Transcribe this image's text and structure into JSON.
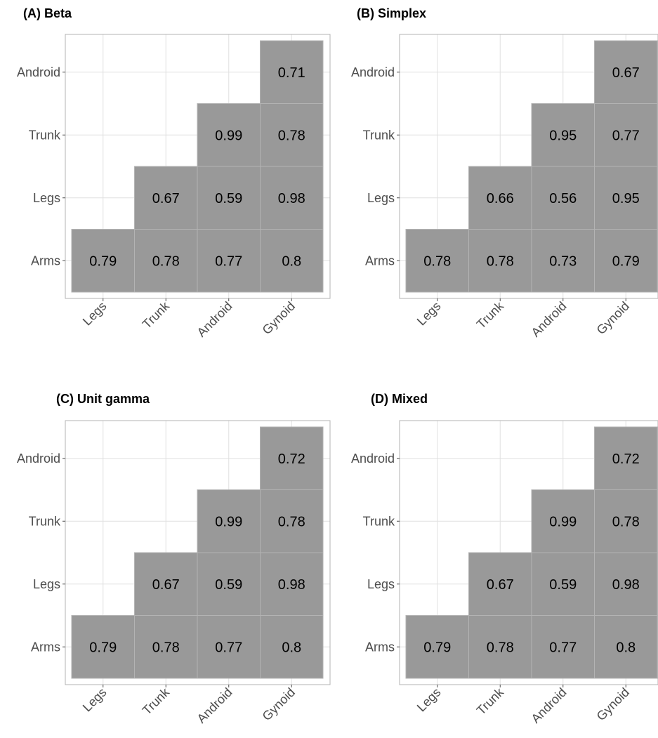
{
  "chart_data": [
    {
      "type": "heatmap",
      "title": "(A) Beta",
      "x_categories": [
        "Legs",
        "Trunk",
        "Android",
        "Gynoid"
      ],
      "y_categories": [
        "Arms",
        "Legs",
        "Trunk",
        "Android"
      ],
      "cells": [
        {
          "x": "Legs",
          "y": "Arms",
          "value": "0.79"
        },
        {
          "x": "Trunk",
          "y": "Arms",
          "value": "0.78"
        },
        {
          "x": "Android",
          "y": "Arms",
          "value": "0.77"
        },
        {
          "x": "Gynoid",
          "y": "Arms",
          "value": "0.8"
        },
        {
          "x": "Trunk",
          "y": "Legs",
          "value": "0.67"
        },
        {
          "x": "Android",
          "y": "Legs",
          "value": "0.59"
        },
        {
          "x": "Gynoid",
          "y": "Legs",
          "value": "0.98"
        },
        {
          "x": "Android",
          "y": "Trunk",
          "value": "0.99"
        },
        {
          "x": "Gynoid",
          "y": "Trunk",
          "value": "0.78"
        },
        {
          "x": "Gynoid",
          "y": "Android",
          "value": "0.71"
        }
      ],
      "grid": true
    },
    {
      "type": "heatmap",
      "title": "(B) Simplex",
      "x_categories": [
        "Legs",
        "Trunk",
        "Android",
        "Gynoid"
      ],
      "y_categories": [
        "Arms",
        "Legs",
        "Trunk",
        "Android"
      ],
      "cells": [
        {
          "x": "Legs",
          "y": "Arms",
          "value": "0.78"
        },
        {
          "x": "Trunk",
          "y": "Arms",
          "value": "0.78"
        },
        {
          "x": "Android",
          "y": "Arms",
          "value": "0.73"
        },
        {
          "x": "Gynoid",
          "y": "Arms",
          "value": "0.79"
        },
        {
          "x": "Trunk",
          "y": "Legs",
          "value": "0.66"
        },
        {
          "x": "Android",
          "y": "Legs",
          "value": "0.56"
        },
        {
          "x": "Gynoid",
          "y": "Legs",
          "value": "0.95"
        },
        {
          "x": "Android",
          "y": "Trunk",
          "value": "0.95"
        },
        {
          "x": "Gynoid",
          "y": "Trunk",
          "value": "0.77"
        },
        {
          "x": "Gynoid",
          "y": "Android",
          "value": "0.67"
        }
      ],
      "grid": true
    },
    {
      "type": "heatmap",
      "title": "(C) Unit gamma",
      "x_categories": [
        "Legs",
        "Trunk",
        "Android",
        "Gynoid"
      ],
      "y_categories": [
        "Arms",
        "Legs",
        "Trunk",
        "Android"
      ],
      "cells": [
        {
          "x": "Legs",
          "y": "Arms",
          "value": "0.79"
        },
        {
          "x": "Trunk",
          "y": "Arms",
          "value": "0.78"
        },
        {
          "x": "Android",
          "y": "Arms",
          "value": "0.77"
        },
        {
          "x": "Gynoid",
          "y": "Arms",
          "value": "0.8"
        },
        {
          "x": "Trunk",
          "y": "Legs",
          "value": "0.67"
        },
        {
          "x": "Android",
          "y": "Legs",
          "value": "0.59"
        },
        {
          "x": "Gynoid",
          "y": "Legs",
          "value": "0.98"
        },
        {
          "x": "Android",
          "y": "Trunk",
          "value": "0.99"
        },
        {
          "x": "Gynoid",
          "y": "Trunk",
          "value": "0.78"
        },
        {
          "x": "Gynoid",
          "y": "Android",
          "value": "0.72"
        }
      ],
      "grid": true
    },
    {
      "type": "heatmap",
      "title": "(D) Mixed",
      "x_categories": [
        "Legs",
        "Trunk",
        "Android",
        "Gynoid"
      ],
      "y_categories": [
        "Arms",
        "Legs",
        "Trunk",
        "Android"
      ],
      "cells": [
        {
          "x": "Legs",
          "y": "Arms",
          "value": "0.79"
        },
        {
          "x": "Trunk",
          "y": "Arms",
          "value": "0.78"
        },
        {
          "x": "Android",
          "y": "Arms",
          "value": "0.77"
        },
        {
          "x": "Gynoid",
          "y": "Arms",
          "value": "0.8"
        },
        {
          "x": "Trunk",
          "y": "Legs",
          "value": "0.67"
        },
        {
          "x": "Android",
          "y": "Legs",
          "value": "0.59"
        },
        {
          "x": "Gynoid",
          "y": "Legs",
          "value": "0.98"
        },
        {
          "x": "Android",
          "y": "Trunk",
          "value": "0.99"
        },
        {
          "x": "Gynoid",
          "y": "Trunk",
          "value": "0.78"
        },
        {
          "x": "Gynoid",
          "y": "Android",
          "value": "0.72"
        }
      ],
      "grid": true
    }
  ],
  "colors": {
    "tile_fill": "#999999",
    "tile_border": "#b3b3b3",
    "grid_line": "#e0e0e0",
    "panel_border": "#b3b3b3",
    "value_text": "#000000",
    "tick_text": "#4d4d4d",
    "title_text": "#000000"
  }
}
